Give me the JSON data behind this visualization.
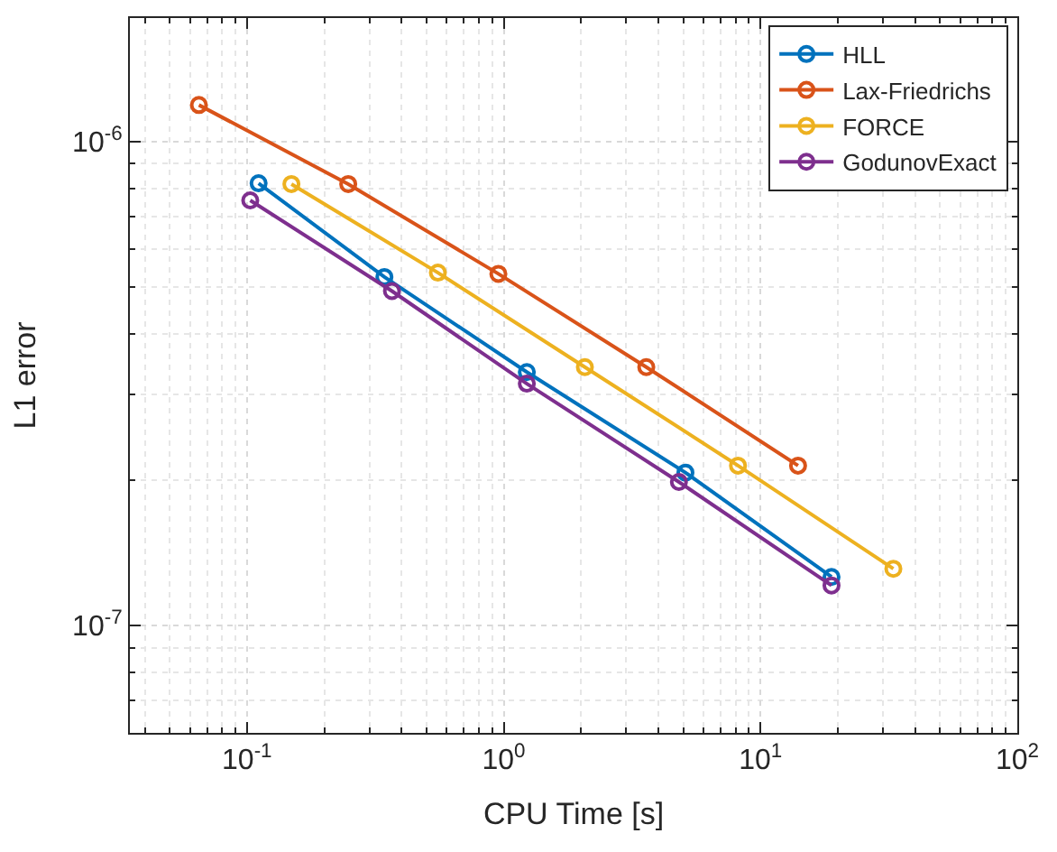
{
  "chart_data": {
    "type": "line",
    "xlabel": "CPU Time [s]",
    "ylabel": "L1 error",
    "log": "xy",
    "grid": true,
    "legend": "top right",
    "marker": "circle",
    "line_style": "solid",
    "xlim": [
      0.035,
      100
    ],
    "ylim": [
      6e-08,
      1.8e-06
    ],
    "xticks": [
      {
        "value": 0.1,
        "label": "10$^{-1}$"
      },
      {
        "value": 1,
        "label": "10$^{0}$"
      },
      {
        "value": 10,
        "label": "10$^{1}$"
      },
      {
        "value": 100,
        "label": "10$^{2}$"
      }
    ],
    "yticks": [
      {
        "value": 1e-07,
        "label": "10$^{-7}$"
      },
      {
        "value": 1e-06,
        "label": "10$^{-6}$"
      }
    ],
    "series": [
      {
        "name": "HLL",
        "color": "#0072bd",
        "x": [
          0.111,
          0.343,
          1.23,
          5.1,
          18.9
        ],
        "values": [
          8.2e-07,
          5.25e-07,
          3.34e-07,
          2.07e-07,
          1.26e-07
        ]
      },
      {
        "name": "Lax-Friedrichs",
        "color": "#d95319",
        "x": [
          0.065,
          0.248,
          0.953,
          3.59,
          14.0
        ],
        "values": [
          1.19e-06,
          8.17e-07,
          5.33e-07,
          3.42e-07,
          2.14e-07
        ]
      },
      {
        "name": "FORCE",
        "color": "#edb120",
        "x": [
          0.149,
          0.554,
          2.07,
          8.17,
          32.9
        ],
        "values": [
          8.17e-07,
          5.36e-07,
          3.42e-07,
          2.14e-07,
          1.31e-07
        ]
      },
      {
        "name": "GodunovExact",
        "color": "#7e2f8e",
        "x": [
          0.103,
          0.367,
          1.23,
          4.81,
          18.9
        ],
        "values": [
          7.56e-07,
          4.91e-07,
          3.16e-07,
          1.98e-07,
          1.21e-07
        ]
      }
    ]
  }
}
